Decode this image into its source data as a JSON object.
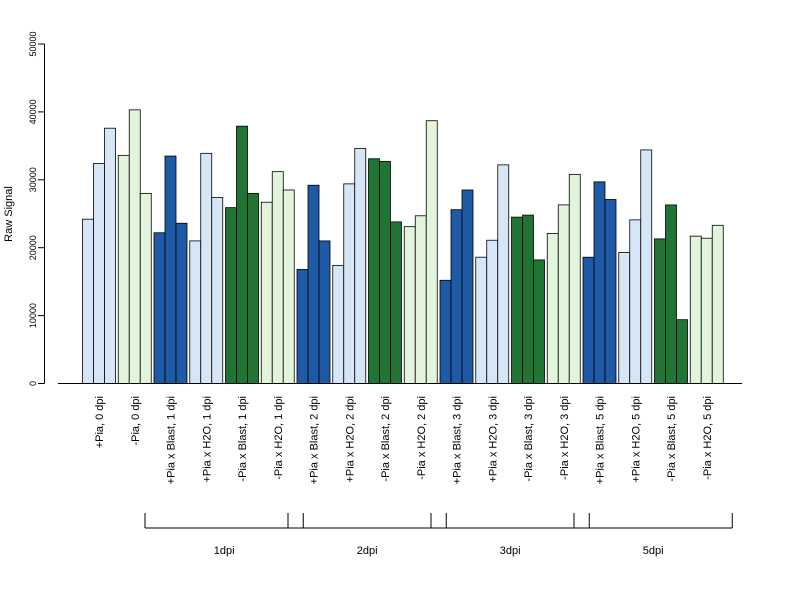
{
  "chart_data": {
    "type": "bar",
    "ylabel": "Raw Signal",
    "ylim": [
      0,
      50000
    ],
    "yticks": [
      0,
      10000,
      20000,
      30000,
      40000,
      50000
    ],
    "categories": [
      "+Pia, 0 dpi",
      "-Pia, 0 dpi",
      "+Pia x Blast, 1 dpi",
      "+Pia x H2O, 1 dpi",
      "-Pia x Blast, 1 dpi",
      "-Pia x H2O, 1 dpi",
      "+Pia x Blast, 2 dpi",
      "+Pia x H2O, 2 dpi",
      "-Pia x Blast, 2 dpi",
      "-Pia x H2O, 2 dpi",
      "+Pia x Blast, 3 dpi",
      "+Pia x H2O, 3 dpi",
      "-Pia x Blast, 3 dpi",
      "-Pia x H2O, 3 dpi",
      "+Pia x Blast, 5 dpi",
      "+Pia x H2O, 5 dpi",
      "-Pia x Blast, 5 dpi",
      "-Pia x H2O, 5 dpi"
    ],
    "groups": [
      {
        "values": [
          24200,
          32400,
          37600
        ],
        "color": "#d6e6f7"
      },
      {
        "values": [
          33600,
          40300,
          28000
        ],
        "color": "#e2f5dc"
      },
      {
        "values": [
          22200,
          33500,
          23600
        ],
        "color": "#1f5aa6"
      },
      {
        "values": [
          21000,
          33900,
          27400
        ],
        "color": "#d6e6f7"
      },
      {
        "values": [
          25900,
          37900,
          28000
        ],
        "color": "#207535"
      },
      {
        "values": [
          26700,
          31200,
          28500
        ],
        "color": "#e2f5dc"
      },
      {
        "values": [
          16800,
          29200,
          21000
        ],
        "color": "#1f5aa6"
      },
      {
        "values": [
          17400,
          29400,
          34600
        ],
        "color": "#d6e6f7"
      },
      {
        "values": [
          33100,
          32700,
          23800
        ],
        "color": "#207535"
      },
      {
        "values": [
          23100,
          24700,
          38700
        ],
        "color": "#e2f5dc"
      },
      {
        "values": [
          15200,
          25600,
          28500
        ],
        "color": "#1f5aa6"
      },
      {
        "values": [
          18600,
          21100,
          32200
        ],
        "color": "#d6e6f7"
      },
      {
        "values": [
          24500,
          24800,
          18200
        ],
        "color": "#207535"
      },
      {
        "values": [
          22100,
          26300,
          30800
        ],
        "color": "#e2f5dc"
      },
      {
        "values": [
          18600,
          29700,
          27100
        ],
        "color": "#1f5aa6"
      },
      {
        "values": [
          19300,
          24100,
          34400
        ],
        "color": "#d6e6f7"
      },
      {
        "values": [
          21300,
          26300,
          9400
        ],
        "color": "#207535"
      },
      {
        "values": [
          21700,
          21400,
          23300
        ],
        "color": "#e2f5dc"
      }
    ],
    "day_groups": [
      {
        "label": "1dpi",
        "from": 2,
        "to": 5
      },
      {
        "label": "2dpi",
        "from": 6,
        "to": 9
      },
      {
        "label": "3dpi",
        "from": 10,
        "to": 13
      },
      {
        "label": "5dpi",
        "from": 14,
        "to": 17
      }
    ]
  }
}
